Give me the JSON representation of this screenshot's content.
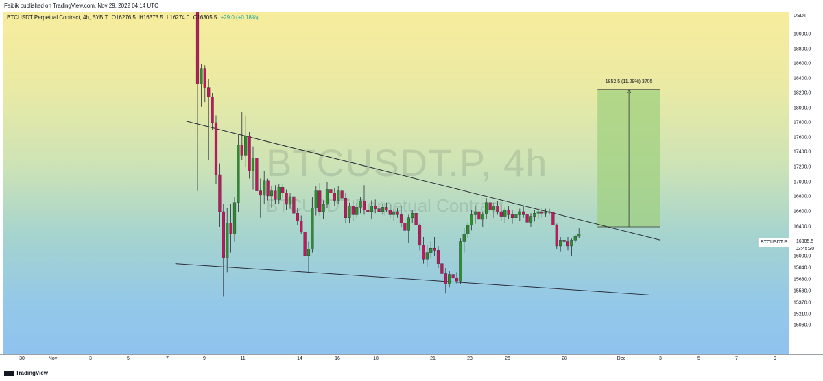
{
  "header": {
    "published_by": "Faibik published on TradingView.com, Nov 29, 2022 04:14 UTC"
  },
  "legend": {
    "symbol": "BTCUSDT Perpetual Contract, 4h, BYBIT",
    "open": "O16276.5",
    "high": "H16373.5",
    "low": "L16274.0",
    "close": "C16305.5",
    "change": "+29.0 (+0.18%)",
    "change_color": "#26a69a"
  },
  "watermark": {
    "ticker": "BTCUSDT.P, 4h",
    "name": "BTCUSDT Perpetual Contract"
  },
  "price_axis": {
    "title": "USDT"
  },
  "current": {
    "label": "BTCUSDT.P",
    "price": "16305.5",
    "countdown": "03:45:30"
  },
  "measure": {
    "label": "1852.5 (11.29%) 3705"
  },
  "footer": {
    "brand": "TradingView"
  },
  "colors": {
    "up": "#2e8b2e",
    "down": "#c2185b",
    "measure_fill": "#9ccf7c",
    "trendline": "#2a2e39"
  },
  "chart_data": {
    "type": "candlestick",
    "timeframe": "4h",
    "symbol": "BTCUSDT.P",
    "price_ticks": [
      19000.0,
      18800.0,
      18600.0,
      18400.0,
      18200.0,
      18000.0,
      17800.0,
      17600.0,
      17400.0,
      17200.0,
      17000.0,
      16800.0,
      16600.0,
      16400.0,
      16000.0,
      15840.0,
      15680.0,
      15530.0,
      15370.0,
      15210.0,
      15060.0
    ],
    "date_ticks": [
      "30",
      "Nov",
      "3",
      "5",
      "7",
      "9",
      "11",
      "14",
      "16",
      "18",
      "21",
      "23",
      "25",
      "28",
      "Dec",
      "3",
      "5",
      "7",
      "9"
    ],
    "candles": [
      {
        "o": 19330,
        "h": 19420,
        "l": 16880,
        "c": 18330
      },
      {
        "o": 18330,
        "h": 18600,
        "l": 18020,
        "c": 18540
      },
      {
        "o": 18540,
        "h": 18580,
        "l": 18080,
        "c": 18280
      },
      {
        "o": 18280,
        "h": 18400,
        "l": 17300,
        "c": 18150
      },
      {
        "o": 18150,
        "h": 18200,
        "l": 17700,
        "c": 17800
      },
      {
        "o": 17800,
        "h": 17900,
        "l": 16980,
        "c": 17100
      },
      {
        "o": 17100,
        "h": 17250,
        "l": 16400,
        "c": 16600
      },
      {
        "o": 16600,
        "h": 16700,
        "l": 15460,
        "c": 15980
      },
      {
        "o": 15980,
        "h": 16650,
        "l": 15780,
        "c": 16450
      },
      {
        "o": 16450,
        "h": 16700,
        "l": 16050,
        "c": 16300
      },
      {
        "o": 16300,
        "h": 16800,
        "l": 16200,
        "c": 16720
      },
      {
        "o": 16720,
        "h": 17640,
        "l": 16600,
        "c": 17500
      },
      {
        "o": 17500,
        "h": 17950,
        "l": 17300,
        "c": 17360
      },
      {
        "o": 17360,
        "h": 17900,
        "l": 17200,
        "c": 17620
      },
      {
        "o": 17620,
        "h": 17680,
        "l": 17050,
        "c": 17150
      },
      {
        "o": 17150,
        "h": 17480,
        "l": 16900,
        "c": 17320
      },
      {
        "o": 17320,
        "h": 17400,
        "l": 16750,
        "c": 16880
      },
      {
        "o": 16880,
        "h": 17050,
        "l": 16520,
        "c": 16820
      },
      {
        "o": 16820,
        "h": 17150,
        "l": 16700,
        "c": 17020
      },
      {
        "o": 17020,
        "h": 17050,
        "l": 16750,
        "c": 16810
      },
      {
        "o": 16810,
        "h": 16950,
        "l": 16650,
        "c": 16880
      },
      {
        "o": 16880,
        "h": 16960,
        "l": 16700,
        "c": 16760
      },
      {
        "o": 16760,
        "h": 16980,
        "l": 16700,
        "c": 16930
      },
      {
        "o": 16930,
        "h": 16980,
        "l": 16780,
        "c": 16850
      },
      {
        "o": 16850,
        "h": 16900,
        "l": 16620,
        "c": 16700
      },
      {
        "o": 16700,
        "h": 16850,
        "l": 16640,
        "c": 16800
      },
      {
        "o": 16800,
        "h": 16850,
        "l": 16520,
        "c": 16580
      },
      {
        "o": 16580,
        "h": 16650,
        "l": 16420,
        "c": 16480
      },
      {
        "o": 16480,
        "h": 16550,
        "l": 16300,
        "c": 16330
      },
      {
        "o": 16330,
        "h": 16400,
        "l": 15900,
        "c": 16010
      },
      {
        "o": 16010,
        "h": 16200,
        "l": 15780,
        "c": 16100
      },
      {
        "o": 16100,
        "h": 16800,
        "l": 16050,
        "c": 16650
      },
      {
        "o": 16650,
        "h": 16950,
        "l": 16550,
        "c": 16880
      },
      {
        "o": 16880,
        "h": 16990,
        "l": 16550,
        "c": 16600
      },
      {
        "o": 16600,
        "h": 16750,
        "l": 16500,
        "c": 16700
      },
      {
        "o": 16700,
        "h": 17000,
        "l": 16650,
        "c": 16900
      },
      {
        "o": 16900,
        "h": 17100,
        "l": 16800,
        "c": 16850
      },
      {
        "o": 16850,
        "h": 16920,
        "l": 16680,
        "c": 16750
      },
      {
        "o": 16750,
        "h": 16950,
        "l": 16700,
        "c": 16880
      },
      {
        "o": 16880,
        "h": 16950,
        "l": 16700,
        "c": 16780
      },
      {
        "o": 16780,
        "h": 16850,
        "l": 16450,
        "c": 16520
      },
      {
        "o": 16520,
        "h": 16720,
        "l": 16450,
        "c": 16680
      },
      {
        "o": 16680,
        "h": 16750,
        "l": 16480,
        "c": 16560
      },
      {
        "o": 16560,
        "h": 16720,
        "l": 16520,
        "c": 16660
      },
      {
        "o": 16660,
        "h": 16800,
        "l": 16580,
        "c": 16740
      },
      {
        "o": 16740,
        "h": 16960,
        "l": 16560,
        "c": 16620
      },
      {
        "o": 16620,
        "h": 16740,
        "l": 16520,
        "c": 16600
      },
      {
        "o": 16600,
        "h": 16750,
        "l": 16500,
        "c": 16680
      },
      {
        "o": 16680,
        "h": 16760,
        "l": 16580,
        "c": 16640
      },
      {
        "o": 16640,
        "h": 16720,
        "l": 16540,
        "c": 16600
      },
      {
        "o": 16600,
        "h": 16700,
        "l": 16560,
        "c": 16660
      },
      {
        "o": 16660,
        "h": 16720,
        "l": 16600,
        "c": 16620
      },
      {
        "o": 16620,
        "h": 16700,
        "l": 16520,
        "c": 16560
      },
      {
        "o": 16560,
        "h": 16640,
        "l": 16480,
        "c": 16600
      },
      {
        "o": 16600,
        "h": 16650,
        "l": 16520,
        "c": 16560
      },
      {
        "o": 16560,
        "h": 16680,
        "l": 16400,
        "c": 16450
      },
      {
        "o": 16450,
        "h": 16500,
        "l": 16300,
        "c": 16350
      },
      {
        "o": 16350,
        "h": 16560,
        "l": 16180,
        "c": 16520
      },
      {
        "o": 16520,
        "h": 16620,
        "l": 16450,
        "c": 16580
      },
      {
        "o": 16580,
        "h": 16650,
        "l": 16360,
        "c": 16420
      },
      {
        "o": 16420,
        "h": 16440,
        "l": 16080,
        "c": 16150
      },
      {
        "o": 16150,
        "h": 16260,
        "l": 15900,
        "c": 15960
      },
      {
        "o": 15960,
        "h": 16150,
        "l": 15850,
        "c": 16050
      },
      {
        "o": 16050,
        "h": 16200,
        "l": 15980,
        "c": 16110
      },
      {
        "o": 16110,
        "h": 16260,
        "l": 16000,
        "c": 16080
      },
      {
        "o": 16080,
        "h": 16140,
        "l": 15840,
        "c": 15900
      },
      {
        "o": 15900,
        "h": 15980,
        "l": 15700,
        "c": 15760
      },
      {
        "o": 15760,
        "h": 15840,
        "l": 15500,
        "c": 15620
      },
      {
        "o": 15620,
        "h": 15800,
        "l": 15580,
        "c": 15750
      },
      {
        "o": 15750,
        "h": 15850,
        "l": 15650,
        "c": 15700
      },
      {
        "o": 15700,
        "h": 15780,
        "l": 15620,
        "c": 15660
      },
      {
        "o": 15660,
        "h": 16240,
        "l": 15620,
        "c": 16200
      },
      {
        "o": 16200,
        "h": 16380,
        "l": 16050,
        "c": 16300
      },
      {
        "o": 16300,
        "h": 16450,
        "l": 16250,
        "c": 16420
      },
      {
        "o": 16420,
        "h": 16620,
        "l": 16350,
        "c": 16560
      },
      {
        "o": 16560,
        "h": 16680,
        "l": 16440,
        "c": 16600
      },
      {
        "o": 16600,
        "h": 16700,
        "l": 16420,
        "c": 16500
      },
      {
        "o": 16500,
        "h": 16600,
        "l": 16400,
        "c": 16570
      },
      {
        "o": 16570,
        "h": 16780,
        "l": 16500,
        "c": 16720
      },
      {
        "o": 16720,
        "h": 16800,
        "l": 16560,
        "c": 16620
      },
      {
        "o": 16620,
        "h": 16720,
        "l": 16520,
        "c": 16680
      },
      {
        "o": 16680,
        "h": 16740,
        "l": 16560,
        "c": 16600
      },
      {
        "o": 16600,
        "h": 16700,
        "l": 16480,
        "c": 16540
      },
      {
        "o": 16540,
        "h": 16660,
        "l": 16450,
        "c": 16620
      },
      {
        "o": 16620,
        "h": 16680,
        "l": 16500,
        "c": 16560
      },
      {
        "o": 16560,
        "h": 16620,
        "l": 16440,
        "c": 16520
      },
      {
        "o": 16520,
        "h": 16600,
        "l": 16430,
        "c": 16560
      },
      {
        "o": 16560,
        "h": 16640,
        "l": 16480,
        "c": 16600
      },
      {
        "o": 16600,
        "h": 16680,
        "l": 16520,
        "c": 16560
      },
      {
        "o": 16560,
        "h": 16600,
        "l": 16420,
        "c": 16460
      },
      {
        "o": 16460,
        "h": 16580,
        "l": 16400,
        "c": 16540
      },
      {
        "o": 16540,
        "h": 16620,
        "l": 16470,
        "c": 16580
      },
      {
        "o": 16580,
        "h": 16640,
        "l": 16500,
        "c": 16600
      },
      {
        "o": 16600,
        "h": 16650,
        "l": 16520,
        "c": 16580
      },
      {
        "o": 16580,
        "h": 16640,
        "l": 16530,
        "c": 16600
      },
      {
        "o": 16600,
        "h": 16640,
        "l": 16560,
        "c": 16590
      },
      {
        "o": 16590,
        "h": 16620,
        "l": 16400,
        "c": 16420
      },
      {
        "o": 16420,
        "h": 16440,
        "l": 16100,
        "c": 16140
      },
      {
        "o": 16140,
        "h": 16260,
        "l": 16060,
        "c": 16220
      },
      {
        "o": 16220,
        "h": 16270,
        "l": 16120,
        "c": 16200
      },
      {
        "o": 16200,
        "h": 16260,
        "l": 16080,
        "c": 16140
      },
      {
        "o": 16140,
        "h": 16240,
        "l": 16000,
        "c": 16220
      },
      {
        "o": 16220,
        "h": 16290,
        "l": 16180,
        "c": 16270
      },
      {
        "o": 16270,
        "h": 16380,
        "l": 16250,
        "c": 16300
      }
    ],
    "trendlines": [
      {
        "from": {
          "i": -3,
          "p": 17820
        },
        "to": {
          "i": 125,
          "p": 16220
        }
      },
      {
        "from": {
          "i": -6,
          "p": 15900
        },
        "to": {
          "i": 122,
          "p": 15480
        }
      }
    ],
    "measure_box": {
      "i0": 108,
      "i1": 125,
      "p0": 16400,
      "p1": 18250
    }
  }
}
